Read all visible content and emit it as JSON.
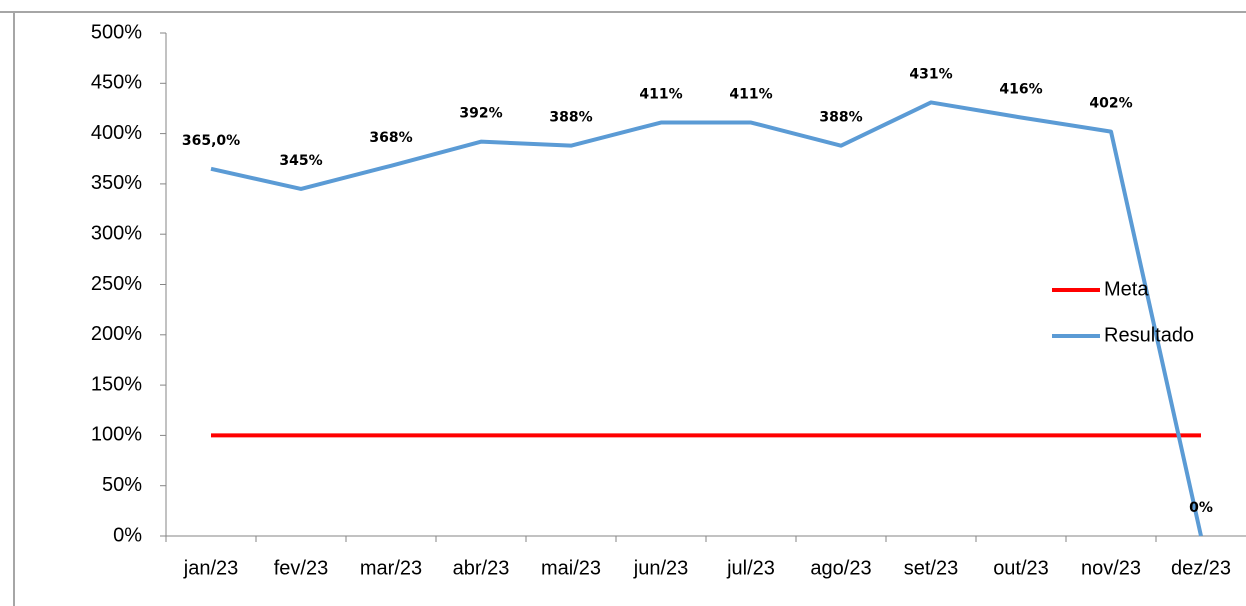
{
  "chart_data": {
    "type": "line",
    "categories": [
      "jan/23",
      "fev/23",
      "mar/23",
      "abr/23",
      "mai/23",
      "jun/23",
      "jul/23",
      "ago/23",
      "set/23",
      "out/23",
      "nov/23",
      "dez/23"
    ],
    "series": [
      {
        "name": "Meta",
        "color": "#ff0000",
        "values": [
          100,
          100,
          100,
          100,
          100,
          100,
          100,
          100,
          100,
          100,
          100,
          100
        ]
      },
      {
        "name": "Resultado",
        "color": "#5b9bd5",
        "values": [
          365,
          345,
          368,
          392,
          388,
          411,
          411,
          388,
          431,
          416,
          402,
          0
        ],
        "value_labels": [
          "365,0%",
          "345%",
          "368%",
          "392%",
          "388%",
          "411%",
          "411%",
          "388%",
          "431%",
          "416%",
          "402%",
          "0%"
        ]
      }
    ],
    "ylim": [
      0,
      500
    ],
    "yticks": [
      {
        "value": 0,
        "label": "0%"
      },
      {
        "value": 50,
        "label": "50%"
      },
      {
        "value": 100,
        "label": "100%"
      },
      {
        "value": 150,
        "label": "150%"
      },
      {
        "value": 200,
        "label": "200%"
      },
      {
        "value": 250,
        "label": "250%"
      },
      {
        "value": 300,
        "label": "300%"
      },
      {
        "value": 350,
        "label": "350%"
      },
      {
        "value": 400,
        "label": "400%"
      },
      {
        "value": 450,
        "label": "450%"
      },
      {
        "value": 500,
        "label": "500%"
      }
    ],
    "legend": "right"
  }
}
